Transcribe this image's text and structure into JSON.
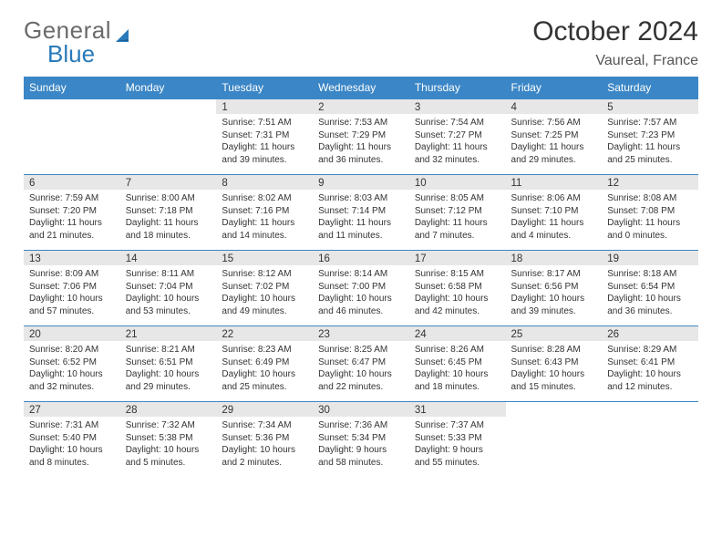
{
  "brand": {
    "part1": "General",
    "part2": "Blue"
  },
  "title": "October 2024",
  "location": "Vaureal, France",
  "colors": {
    "header_bg": "#3b86c6",
    "header_fg": "#ffffff",
    "cell_border": "#3b86c6",
    "daynum_bg": "#e7e7e7",
    "text": "#333333",
    "logo_gray": "#6b6b6b",
    "logo_blue": "#2a7ab9",
    "page_bg": "#ffffff"
  },
  "layout": {
    "font": "Arial",
    "header_fontsize": 12,
    "daynum_fontsize": 11.5,
    "body_fontsize": 10,
    "title_fontsize": 30,
    "location_fontsize": 16,
    "columns": 7,
    "rows": 5
  },
  "weekdays": [
    "Sunday",
    "Monday",
    "Tuesday",
    "Wednesday",
    "Thursday",
    "Friday",
    "Saturday"
  ],
  "lead_blanks": 2,
  "days": [
    {
      "n": "1",
      "sunrise": "7:51 AM",
      "sunset": "7:31 PM",
      "daylight": "11 hours and 39 minutes."
    },
    {
      "n": "2",
      "sunrise": "7:53 AM",
      "sunset": "7:29 PM",
      "daylight": "11 hours and 36 minutes."
    },
    {
      "n": "3",
      "sunrise": "7:54 AM",
      "sunset": "7:27 PM",
      "daylight": "11 hours and 32 minutes."
    },
    {
      "n": "4",
      "sunrise": "7:56 AM",
      "sunset": "7:25 PM",
      "daylight": "11 hours and 29 minutes."
    },
    {
      "n": "5",
      "sunrise": "7:57 AM",
      "sunset": "7:23 PM",
      "daylight": "11 hours and 25 minutes."
    },
    {
      "n": "6",
      "sunrise": "7:59 AM",
      "sunset": "7:20 PM",
      "daylight": "11 hours and 21 minutes."
    },
    {
      "n": "7",
      "sunrise": "8:00 AM",
      "sunset": "7:18 PM",
      "daylight": "11 hours and 18 minutes."
    },
    {
      "n": "8",
      "sunrise": "8:02 AM",
      "sunset": "7:16 PM",
      "daylight": "11 hours and 14 minutes."
    },
    {
      "n": "9",
      "sunrise": "8:03 AM",
      "sunset": "7:14 PM",
      "daylight": "11 hours and 11 minutes."
    },
    {
      "n": "10",
      "sunrise": "8:05 AM",
      "sunset": "7:12 PM",
      "daylight": "11 hours and 7 minutes."
    },
    {
      "n": "11",
      "sunrise": "8:06 AM",
      "sunset": "7:10 PM",
      "daylight": "11 hours and 4 minutes."
    },
    {
      "n": "12",
      "sunrise": "8:08 AM",
      "sunset": "7:08 PM",
      "daylight": "11 hours and 0 minutes."
    },
    {
      "n": "13",
      "sunrise": "8:09 AM",
      "sunset": "7:06 PM",
      "daylight": "10 hours and 57 minutes."
    },
    {
      "n": "14",
      "sunrise": "8:11 AM",
      "sunset": "7:04 PM",
      "daylight": "10 hours and 53 minutes."
    },
    {
      "n": "15",
      "sunrise": "8:12 AM",
      "sunset": "7:02 PM",
      "daylight": "10 hours and 49 minutes."
    },
    {
      "n": "16",
      "sunrise": "8:14 AM",
      "sunset": "7:00 PM",
      "daylight": "10 hours and 46 minutes."
    },
    {
      "n": "17",
      "sunrise": "8:15 AM",
      "sunset": "6:58 PM",
      "daylight": "10 hours and 42 minutes."
    },
    {
      "n": "18",
      "sunrise": "8:17 AM",
      "sunset": "6:56 PM",
      "daylight": "10 hours and 39 minutes."
    },
    {
      "n": "19",
      "sunrise": "8:18 AM",
      "sunset": "6:54 PM",
      "daylight": "10 hours and 36 minutes."
    },
    {
      "n": "20",
      "sunrise": "8:20 AM",
      "sunset": "6:52 PM",
      "daylight": "10 hours and 32 minutes."
    },
    {
      "n": "21",
      "sunrise": "8:21 AM",
      "sunset": "6:51 PM",
      "daylight": "10 hours and 29 minutes."
    },
    {
      "n": "22",
      "sunrise": "8:23 AM",
      "sunset": "6:49 PM",
      "daylight": "10 hours and 25 minutes."
    },
    {
      "n": "23",
      "sunrise": "8:25 AM",
      "sunset": "6:47 PM",
      "daylight": "10 hours and 22 minutes."
    },
    {
      "n": "24",
      "sunrise": "8:26 AM",
      "sunset": "6:45 PM",
      "daylight": "10 hours and 18 minutes."
    },
    {
      "n": "25",
      "sunrise": "8:28 AM",
      "sunset": "6:43 PM",
      "daylight": "10 hours and 15 minutes."
    },
    {
      "n": "26",
      "sunrise": "8:29 AM",
      "sunset": "6:41 PM",
      "daylight": "10 hours and 12 minutes."
    },
    {
      "n": "27",
      "sunrise": "7:31 AM",
      "sunset": "5:40 PM",
      "daylight": "10 hours and 8 minutes."
    },
    {
      "n": "28",
      "sunrise": "7:32 AM",
      "sunset": "5:38 PM",
      "daylight": "10 hours and 5 minutes."
    },
    {
      "n": "29",
      "sunrise": "7:34 AM",
      "sunset": "5:36 PM",
      "daylight": "10 hours and 2 minutes."
    },
    {
      "n": "30",
      "sunrise": "7:36 AM",
      "sunset": "5:34 PM",
      "daylight": "9 hours and 58 minutes."
    },
    {
      "n": "31",
      "sunrise": "7:37 AM",
      "sunset": "5:33 PM",
      "daylight": "9 hours and 55 minutes."
    }
  ],
  "labels": {
    "sunrise": "Sunrise: ",
    "sunset": "Sunset: ",
    "daylight": "Daylight: "
  }
}
